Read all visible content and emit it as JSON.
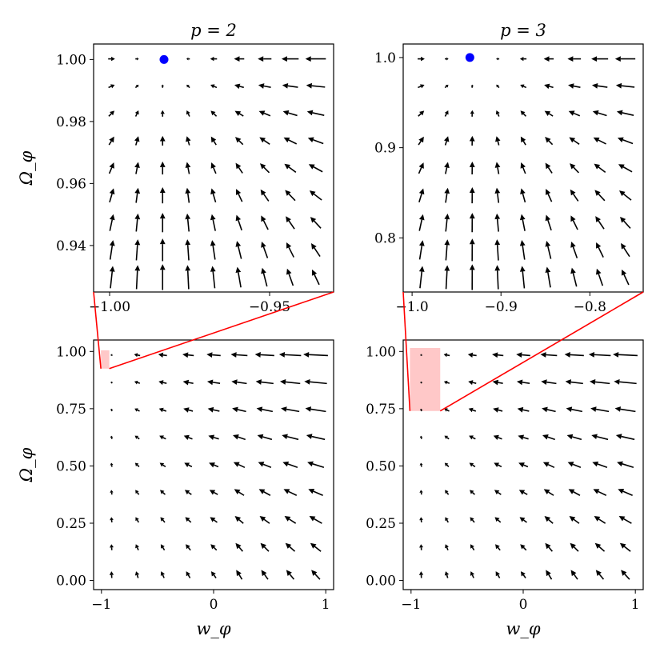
{
  "chart_data": [
    {
      "type": "quiver",
      "panel": "top-left",
      "title": "p = 2",
      "ylabel": "Ω_φ",
      "xlabel": "",
      "xlim": [
        -1.005,
        -0.93
      ],
      "ylim": [
        0.925,
        1.005
      ],
      "xticks": [
        -1.0,
        -0.95
      ],
      "xtick_labels": [
        "−1.00",
        "−0.95"
      ],
      "yticks": [
        0.94,
        0.96,
        0.98,
        1.0
      ],
      "ytick_labels": [
        "0.94",
        "0.96",
        "0.98",
        "1.00"
      ],
      "grid": false,
      "marker_color": "#0000ff",
      "fixed_point": {
        "x": -0.983,
        "y": 1.0
      }
    },
    {
      "type": "quiver",
      "panel": "top-right",
      "title": "p = 3",
      "ylabel": "",
      "xlabel": "",
      "xlim": [
        -1.01,
        -0.74
      ],
      "ylim": [
        0.74,
        1.015
      ],
      "xticks": [
        -1.0,
        -0.9,
        -0.8
      ],
      "xtick_labels": [
        "−1.0",
        "−0.9",
        "−0.8"
      ],
      "yticks": [
        0.8,
        0.9,
        1.0
      ],
      "ytick_labels": [
        "0.8",
        "0.9",
        "1.0"
      ],
      "grid": false,
      "marker_color": "#0000ff",
      "fixed_point": {
        "x": -0.935,
        "y": 1.0
      }
    },
    {
      "type": "quiver",
      "panel": "bottom-left",
      "title": "",
      "ylabel": "Ω_φ",
      "xlabel": "w_φ",
      "xlim": [
        -1.07,
        1.07
      ],
      "ylim": [
        -0.04,
        1.05
      ],
      "xticks": [
        -1,
        0,
        1
      ],
      "xtick_labels": [
        "−1",
        "0",
        "1"
      ],
      "yticks": [
        0.0,
        0.25,
        0.5,
        0.75,
        1.0
      ],
      "ytick_labels": [
        "0.00",
        "0.25",
        "0.50",
        "0.75",
        "1.00"
      ],
      "grid": false,
      "inset_region": {
        "x": [
          -1.005,
          -0.93
        ],
        "y": [
          0.925,
          1.005
        ],
        "color": "#ffc8c8"
      }
    },
    {
      "type": "quiver",
      "panel": "bottom-right",
      "title": "",
      "ylabel": "",
      "xlabel": "w_φ",
      "xlim": [
        -1.07,
        1.07
      ],
      "ylim": [
        -0.04,
        1.05
      ],
      "xticks": [
        -1,
        0,
        1
      ],
      "xtick_labels": [
        "−1",
        "0",
        "1"
      ],
      "yticks": [
        0.0,
        0.25,
        0.5,
        0.75,
        1.0
      ],
      "ytick_labels": [
        "0.00",
        "0.25",
        "0.50",
        "0.75",
        "1.00"
      ],
      "grid": false,
      "inset_region": {
        "x": [
          -1.01,
          -0.74
        ],
        "y": [
          0.74,
          1.015
        ],
        "color": "#ffc8c8"
      }
    }
  ],
  "colors": {
    "arrows": "#000000",
    "connector_lines": "#ff0000",
    "inset_fill": "#ffc8c8",
    "fixed_point": "#0000ff"
  }
}
